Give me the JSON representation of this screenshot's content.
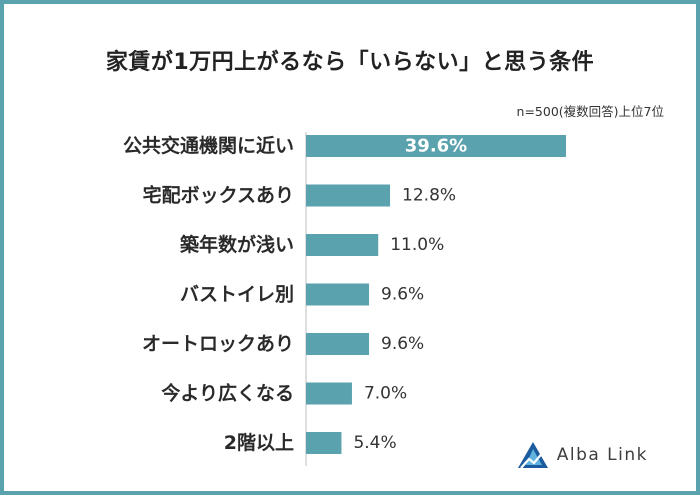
{
  "title": "家賃が1万円上がるなら「いらない」と思う条件",
  "note": "n=500(複数回答)上位7位",
  "logo": {
    "text": "Alba Link"
  },
  "colors": {
    "bar": "#5aa2ad",
    "border": "#5aa2ad",
    "logo_dark": "#1c5b9e",
    "logo_light": "#5fb4e0"
  },
  "chart_data": {
    "type": "bar",
    "orientation": "horizontal",
    "categories": [
      "公共交通機関に近い",
      "宅配ボックスあり",
      "築年数が浅い",
      "バストイレ別",
      "オートロックあり",
      "今より広くなる",
      "2階以上"
    ],
    "values": [
      39.6,
      12.8,
      11.0,
      9.6,
      9.6,
      7.0,
      5.4
    ],
    "value_labels": [
      "39.6%",
      "12.8%",
      "11.0%",
      "9.6%",
      "9.6%",
      "7.0%",
      "5.4%"
    ],
    "xlim": [
      0,
      40
    ],
    "grid": false,
    "legend": "none"
  }
}
